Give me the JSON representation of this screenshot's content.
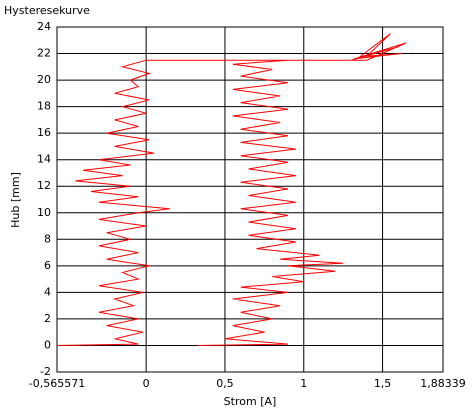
{
  "chart_data": {
    "type": "line",
    "title": "Hysteresekurve",
    "x_label": "Strom [A]",
    "y_label": "Hub [mm]",
    "color": "#ff0000",
    "grid": true,
    "xlim": [
      -0.565571,
      1.88339
    ],
    "ylim": [
      -2,
      24
    ],
    "xticks": [
      {
        "value": -0.565571,
        "label": "-0,565571"
      },
      0,
      {
        "value": 0.5,
        "label": "0,5"
      },
      1,
      {
        "value": 1.5,
        "label": "1,5"
      },
      {
        "value": 1.88339,
        "label": "1,88339"
      }
    ],
    "yticks": [
      -2,
      0,
      2,
      4,
      6,
      8,
      10,
      12,
      14,
      16,
      18,
      20,
      22,
      24
    ],
    "x": [
      -0.565,
      -0.05,
      -0.2,
      -0.02,
      -0.25,
      -0.05,
      -0.3,
      -0.08,
      -0.2,
      -0.02,
      -0.3,
      -0.05,
      -0.15,
      0.02,
      -0.25,
      -0.05,
      -0.3,
      -0.1,
      -0.25,
      0.0,
      -0.3,
      -0.05,
      0.15,
      -0.3,
      -0.05,
      -0.35,
      -0.1,
      -0.45,
      -0.15,
      -0.4,
      -0.1,
      -0.3,
      0.05,
      -0.2,
      0.02,
      -0.25,
      -0.05,
      -0.2,
      0.0,
      -0.15,
      0.02,
      -0.2,
      -0.05,
      -0.1,
      0.02,
      -0.15,
      0.0,
      1.3,
      1.6,
      1.35,
      1.55,
      1.4,
      1.62,
      1.32,
      1.65,
      1.4,
      0.9,
      0.55,
      0.8,
      0.6,
      0.9,
      0.55,
      0.85,
      0.6,
      0.9,
      0.55,
      0.85,
      0.6,
      0.9,
      0.6,
      0.95,
      0.6,
      0.9,
      0.65,
      0.95,
      0.6,
      0.9,
      0.65,
      0.95,
      0.6,
      0.9,
      0.65,
      0.95,
      0.65,
      0.95,
      0.7,
      1.1,
      0.85,
      1.25,
      0.9,
      1.2,
      0.8,
      1.0,
      0.6,
      0.9,
      0.55,
      0.85,
      0.6,
      0.8,
      0.55,
      0.75,
      0.5,
      0.9,
      0.33
    ],
    "values": [
      0,
      0.1,
      0.5,
      1,
      1.5,
      2,
      2.5,
      3,
      3.5,
      4,
      4.5,
      5,
      5.5,
      6,
      6.5,
      7,
      7.5,
      8,
      8.5,
      9,
      9.5,
      10,
      10.3,
      10.8,
      11.2,
      11.6,
      12,
      12.4,
      12.8,
      13.2,
      13.6,
      14,
      14.5,
      15,
      15.5,
      16,
      16.5,
      17,
      17.5,
      18,
      18.5,
      19,
      19.5,
      20,
      20.5,
      21,
      21.5,
      21.5,
      22.5,
      21.7,
      23.5,
      21.8,
      22,
      21.6,
      22.8,
      21.5,
      21.5,
      21.2,
      20.8,
      20.3,
      19.8,
      19.3,
      18.8,
      18.3,
      17.8,
      17.3,
      16.8,
      16.3,
      15.8,
      15.3,
      14.8,
      14.3,
      13.8,
      13.3,
      12.8,
      12.3,
      11.8,
      11.3,
      10.8,
      10.3,
      9.8,
      9.3,
      8.8,
      8.3,
      7.8,
      7.3,
      6.8,
      6.5,
      6.2,
      6,
      5.6,
      5.2,
      4.8,
      4.4,
      4,
      3.5,
      3,
      2.5,
      2,
      1.5,
      1,
      0.5,
      0.1,
      0
    ]
  }
}
